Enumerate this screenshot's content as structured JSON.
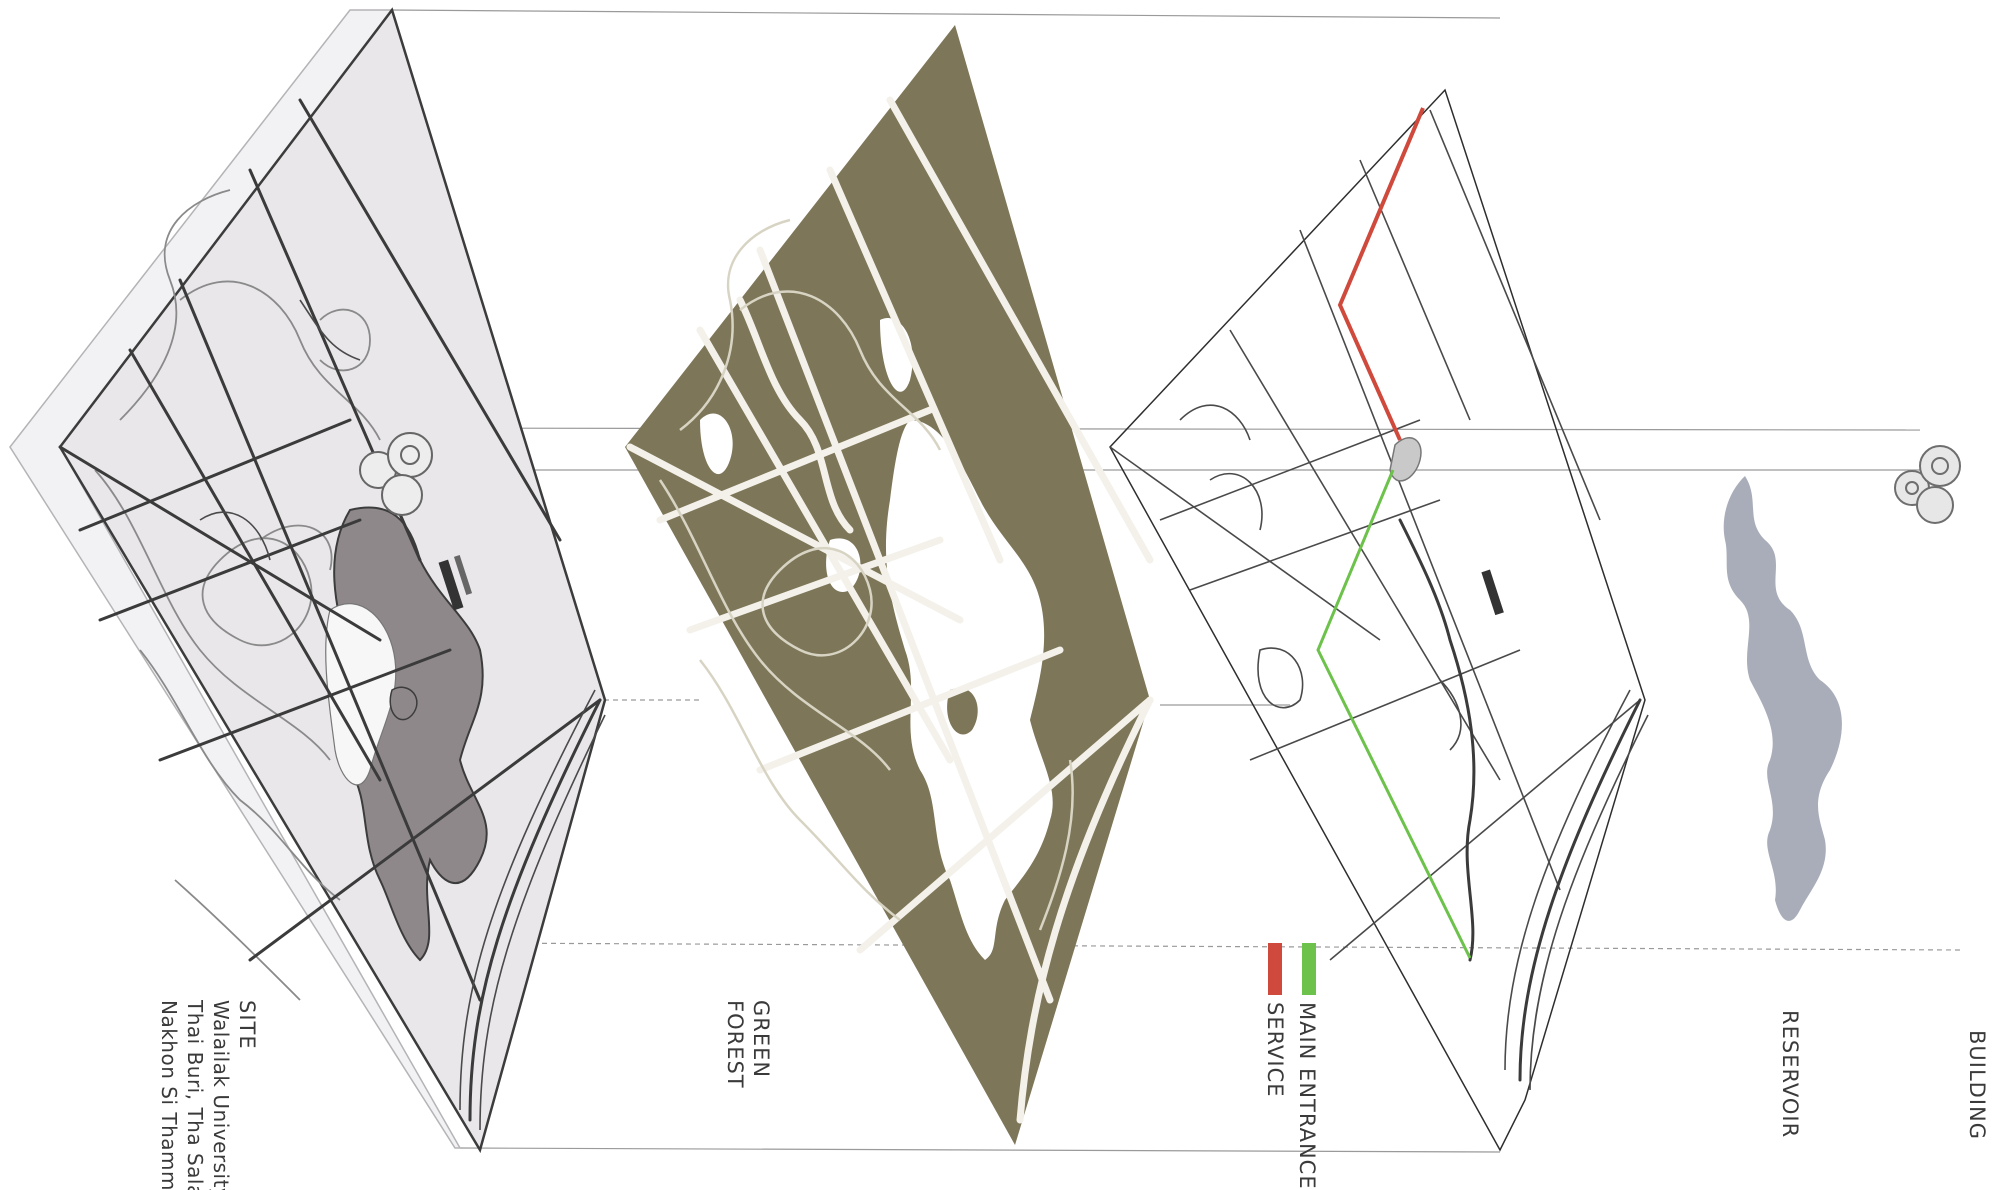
{
  "labels": {
    "site_title": "SITE",
    "site_line1": "Walailak University",
    "site_line2": "Thai Buri, Tha Sala",
    "site_line3": "Nakhon Si Thamma",
    "green_line1": "GREEN",
    "green_line2": "FOREST",
    "legend_main": "MAIN ENTRANCE",
    "legend_service": "SERVICE",
    "reservoir": "RESERVOIR",
    "building": "BUILDING"
  },
  "colors": {
    "site_fill": "#e9e7ea",
    "site_side": "#f2f1f3",
    "forest_fill": "#7d7658",
    "lake_dark": "#8f888b",
    "lake_light": "#f7f7f7",
    "reservoir_fill": "#a8adb9",
    "main_entrance": "#6cc24a",
    "service": "#cf4a3c"
  }
}
